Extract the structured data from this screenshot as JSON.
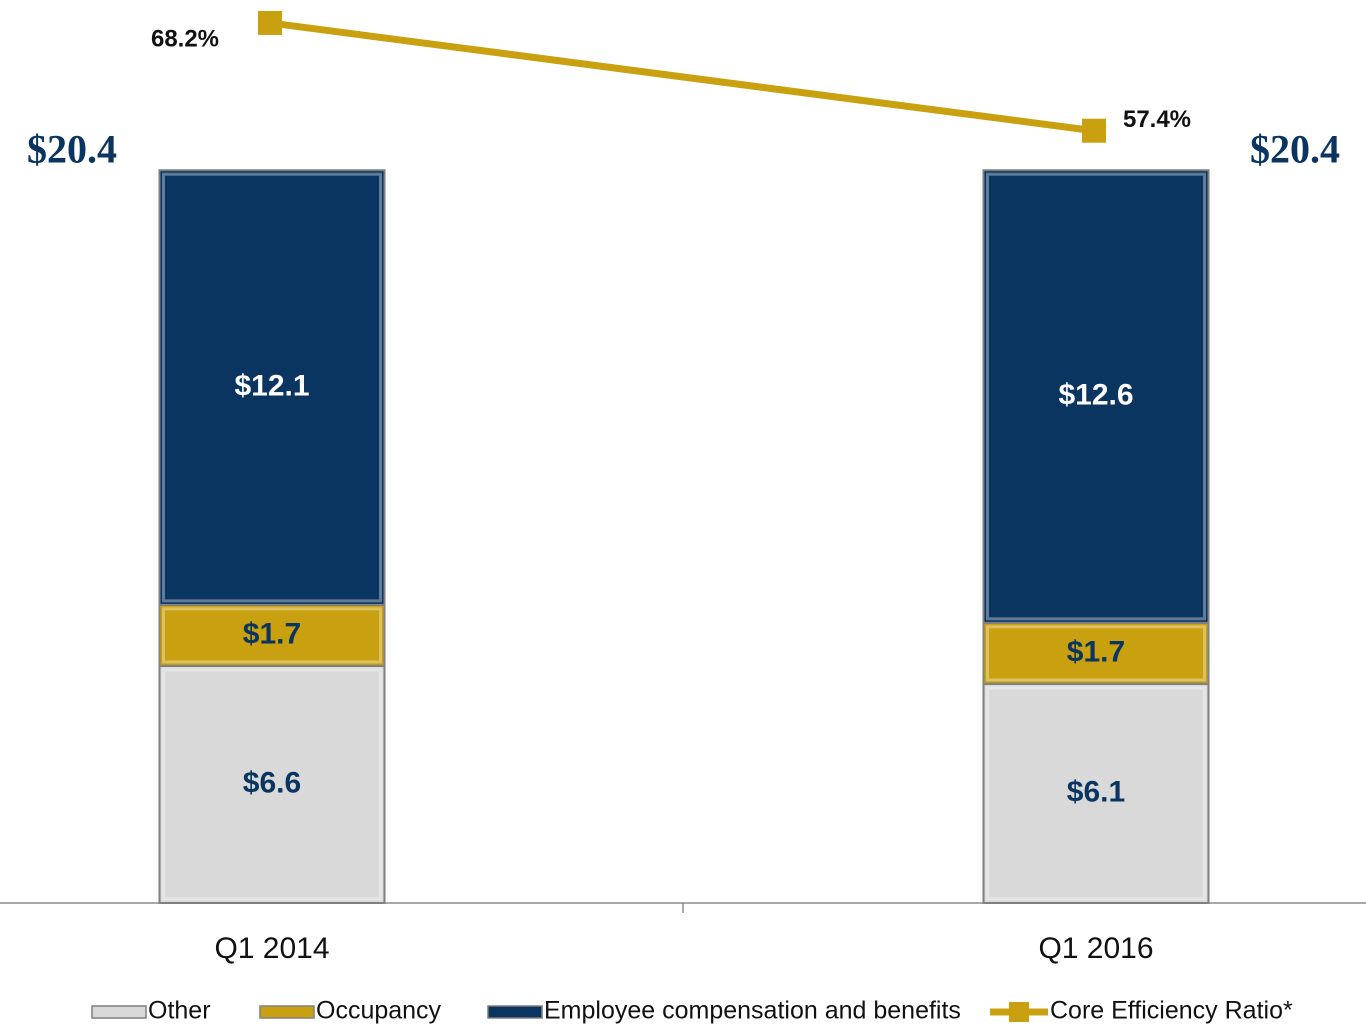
{
  "chart_data": {
    "type": "bar",
    "stacked": true,
    "categories": [
      "Q1 2014",
      "Q1 2016"
    ],
    "series": [
      {
        "name": "Other",
        "color": "#d9d9d9",
        "label_color": "#0b3561",
        "values": [
          6.6,
          6.1
        ],
        "value_labels": [
          "$6.6",
          "$6.1"
        ]
      },
      {
        "name": "Occupancy",
        "color": "#c9a00f",
        "label_color": "#0b3561",
        "values": [
          1.7,
          1.7
        ],
        "value_labels": [
          "$1.7",
          "$1.7"
        ]
      },
      {
        "name": "Employee compensation and benefits",
        "color": "#0b3561",
        "label_color": "#ffffff",
        "values": [
          12.1,
          12.6
        ],
        "value_labels": [
          "$12.1",
          "$12.6"
        ]
      },
      {
        "name": "Core Efficiency Ratio*",
        "type": "line",
        "axis": "y2",
        "color": "#c9a00f",
        "values": [
          68.2,
          57.4
        ],
        "value_labels": [
          "68.2%",
          "57.4%"
        ]
      }
    ],
    "totals": [
      20.4,
      20.4
    ],
    "total_labels": [
      "$20.4",
      "$20.4"
    ],
    "ylim": [
      0,
      25
    ],
    "y2lim": [
      -20,
      70
    ],
    "grid": false,
    "legend": "bottom"
  }
}
